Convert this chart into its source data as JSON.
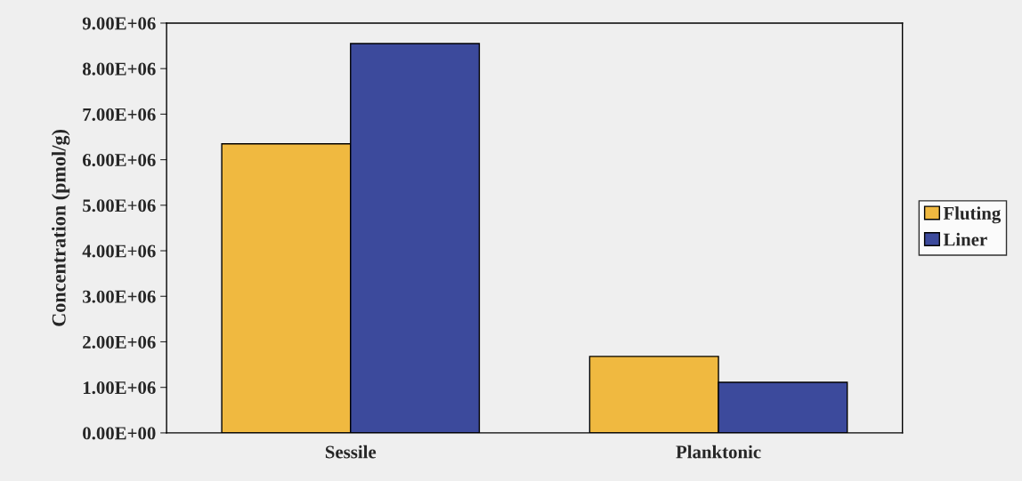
{
  "chart_data": {
    "type": "bar",
    "ylabel": "Concentration (pmol/g)",
    "categories": [
      "Sessile",
      "Planktonic"
    ],
    "series": [
      {
        "name": "Fluting",
        "color": "#f0b940",
        "values": [
          6350000,
          1680000
        ]
      },
      {
        "name": "Liner",
        "color": "#3c4a9c",
        "values": [
          8550000,
          1110000
        ]
      }
    ],
    "ylim": [
      0,
      9000000
    ],
    "yticks": [
      {
        "value": 0,
        "label": "0.00E+00"
      },
      {
        "value": 1000000,
        "label": "1.00E+06"
      },
      {
        "value": 2000000,
        "label": "2.00E+06"
      },
      {
        "value": 3000000,
        "label": "3.00E+06"
      },
      {
        "value": 4000000,
        "label": "4.00E+06"
      },
      {
        "value": 5000000,
        "label": "5.00E+06"
      },
      {
        "value": 6000000,
        "label": "6.00E+06"
      },
      {
        "value": 7000000,
        "label": "7.00E+06"
      },
      {
        "value": 8000000,
        "label": "8.00E+06"
      },
      {
        "value": 9000000,
        "label": "9.00E+06"
      }
    ],
    "grid": false,
    "legend": "right"
  }
}
